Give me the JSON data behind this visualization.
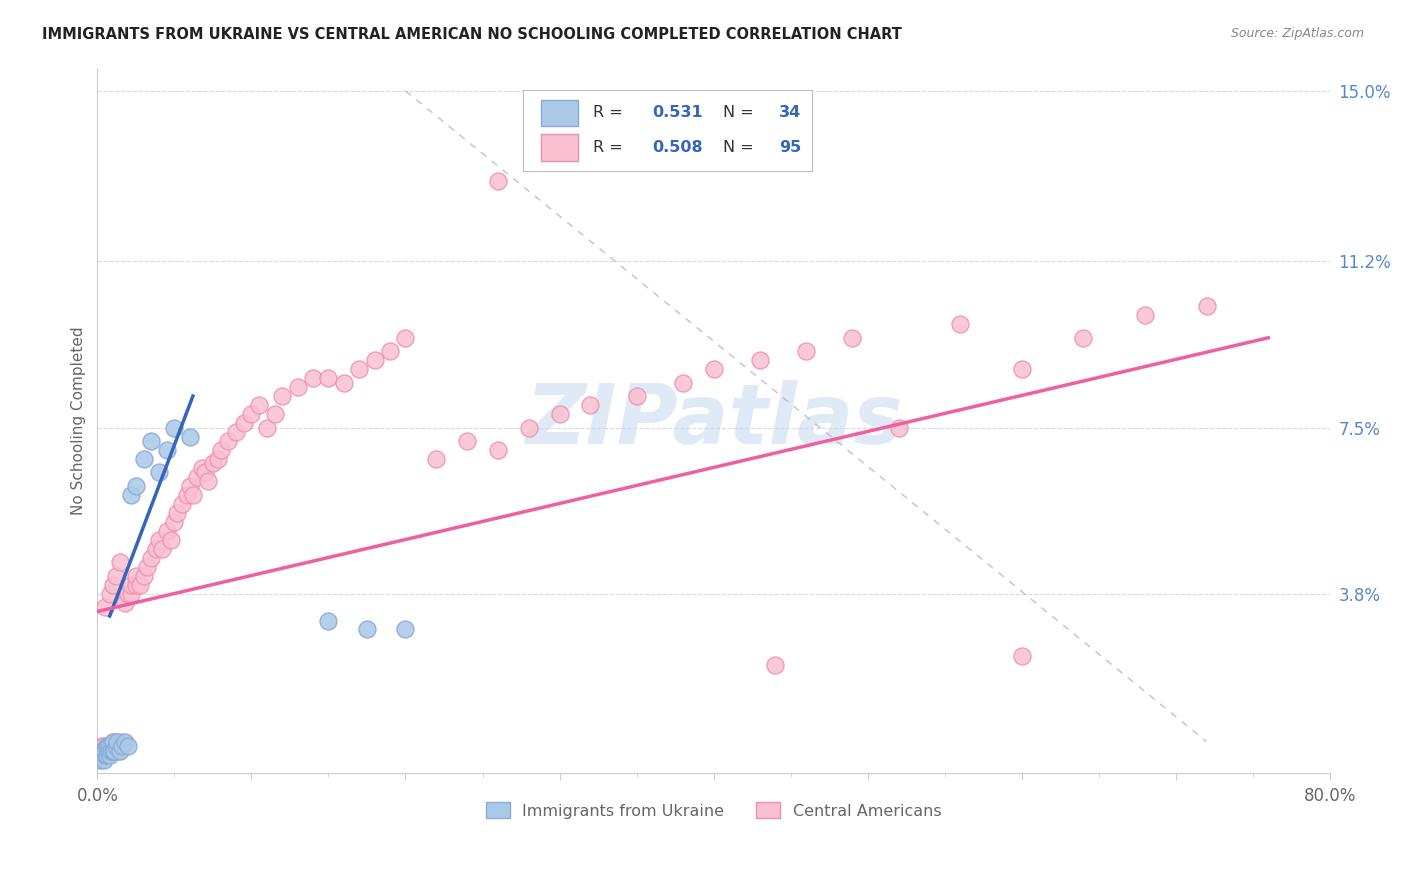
{
  "title": "IMMIGRANTS FROM UKRAINE VS CENTRAL AMERICAN NO SCHOOLING COMPLETED CORRELATION CHART",
  "source": "Source: ZipAtlas.com",
  "ylabel": "No Schooling Completed",
  "xlim": [
    0.0,
    0.8
  ],
  "ylim": [
    -0.002,
    0.155
  ],
  "yticks": [
    0.038,
    0.075,
    0.112,
    0.15
  ],
  "ytick_labels": [
    "3.8%",
    "7.5%",
    "11.2%",
    "15.0%"
  ],
  "ukraine_color": "#aac8e8",
  "ukraine_edge": "#88aad8",
  "central_color": "#f8c0d0",
  "central_edge": "#f090b0",
  "ukraine_trend_color": "#3366bb",
  "central_trend_color": "#f060a0",
  "diag_color": "#aaaacc",
  "watermark_color": "#c8d8f0",
  "background_color": "#ffffff",
  "grid_color": "#d8d8e8",
  "ukraine_R": "0.531",
  "ukraine_N": "34",
  "central_R": "0.508",
  "central_N": "95",
  "title_color": "#222222",
  "source_color": "#888888",
  "axis_label_color": "#666666",
  "tick_color_right": "#5588cc",
  "legend_label_color": "#333333",
  "legend_value_color": "#3366bb"
}
